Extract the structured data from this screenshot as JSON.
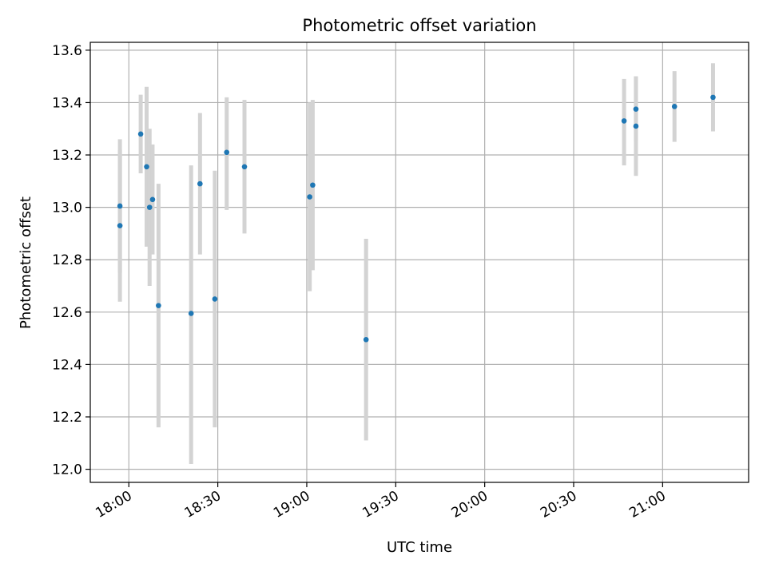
{
  "chart_data": {
    "type": "scatter",
    "title": "Photometric offset variation",
    "xlabel": "UTC time",
    "ylabel": "Photometric offset",
    "xlim": [
      "17:47",
      "21:29"
    ],
    "ylim": [
      11.95,
      13.63
    ],
    "x_ticks": [
      "18:00",
      "18:30",
      "19:00",
      "19:30",
      "20:00",
      "20:30",
      "21:00"
    ],
    "y_ticks": [
      "12.0",
      "12.2",
      "12.4",
      "12.6",
      "12.8",
      "13.0",
      "13.2",
      "13.4",
      "13.6"
    ],
    "grid": true,
    "colors": {
      "point": "#1f77b4",
      "errorbar": "#d3d3d3",
      "grid": "#b0b0b0"
    },
    "points": [
      {
        "x": "17:57",
        "y": 13.005,
        "ymin": 12.75,
        "ymax": 13.26
      },
      {
        "x": "17:57",
        "y": 12.93,
        "ymin": 12.64,
        "ymax": 13.22
      },
      {
        "x": "18:04",
        "y": 13.28,
        "ymin": 13.13,
        "ymax": 13.43
      },
      {
        "x": "18:06",
        "y": 13.155,
        "ymin": 12.85,
        "ymax": 13.46
      },
      {
        "x": "18:07",
        "y": 13.0,
        "ymin": 12.7,
        "ymax": 13.3
      },
      {
        "x": "18:08",
        "y": 13.03,
        "ymin": 12.82,
        "ymax": 13.24
      },
      {
        "x": "18:10",
        "y": 12.625,
        "ymin": 12.16,
        "ymax": 13.09
      },
      {
        "x": "18:21",
        "y": 12.595,
        "ymin": 12.02,
        "ymax": 13.16
      },
      {
        "x": "18:24",
        "y": 13.09,
        "ymin": 12.82,
        "ymax": 13.36
      },
      {
        "x": "18:29",
        "y": 12.65,
        "ymin": 12.16,
        "ymax": 13.14
      },
      {
        "x": "18:33",
        "y": 13.21,
        "ymin": 12.99,
        "ymax": 13.42
      },
      {
        "x": "18:39",
        "y": 13.155,
        "ymin": 12.9,
        "ymax": 13.41
      },
      {
        "x": "19:01",
        "y": 13.04,
        "ymin": 12.68,
        "ymax": 13.4
      },
      {
        "x": "19:02",
        "y": 13.085,
        "ymin": 12.76,
        "ymax": 13.41
      },
      {
        "x": "19:20",
        "y": 12.495,
        "ymin": 12.11,
        "ymax": 12.88
      },
      {
        "x": "20:47",
        "y": 13.33,
        "ymin": 13.16,
        "ymax": 13.49
      },
      {
        "x": "20:51",
        "y": 13.31,
        "ymin": 13.12,
        "ymax": 13.5
      },
      {
        "x": "20:51",
        "y": 13.375,
        "ymin": 13.25,
        "ymax": 13.5
      },
      {
        "x": "21:04",
        "y": 13.385,
        "ymin": 13.25,
        "ymax": 13.52
      },
      {
        "x": "21:17",
        "y": 13.42,
        "ymin": 13.29,
        "ymax": 13.55
      }
    ]
  }
}
